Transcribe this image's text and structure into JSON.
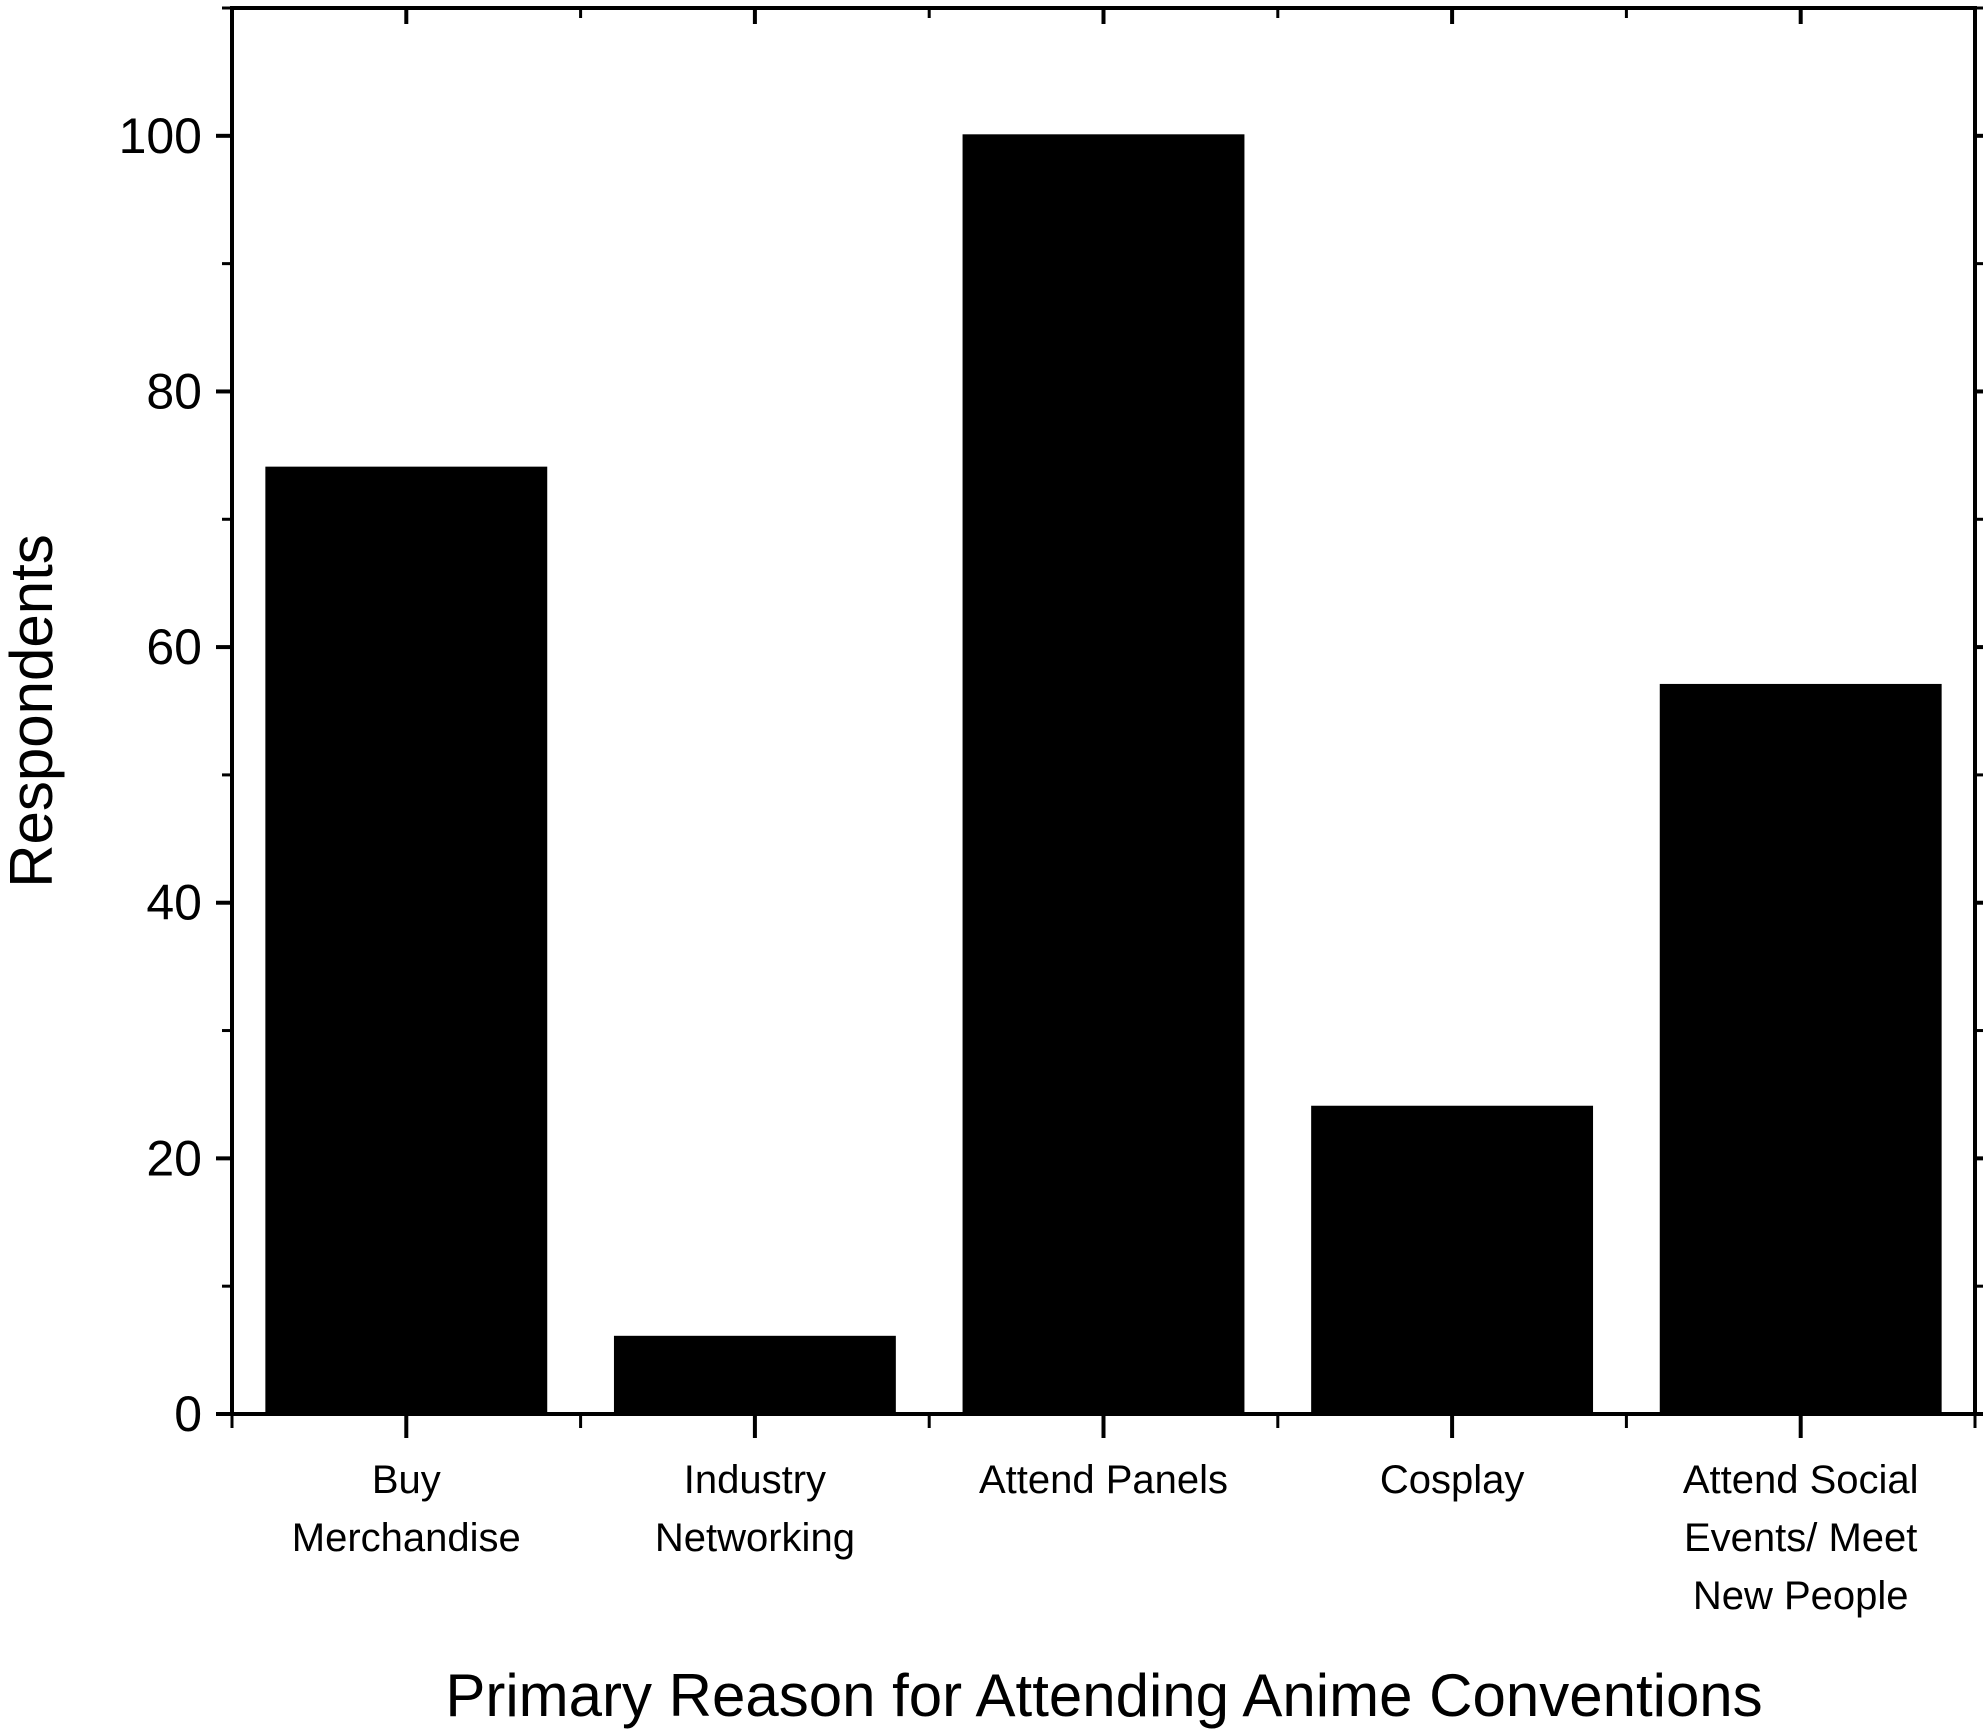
{
  "chart_data": {
    "type": "bar",
    "title": "",
    "xlabel": "Primary Reason for Attending Anime Conventions",
    "ylabel": "Respondents",
    "categories": [
      [
        "Buy",
        "Merchandise"
      ],
      [
        "Industry",
        "Networking"
      ],
      [
        "Attend Panels"
      ],
      [
        "Cosplay"
      ],
      [
        "Attend Social",
        "Events/ Meet",
        "New People"
      ]
    ],
    "values": [
      74,
      6,
      100,
      24,
      57
    ],
    "ylim": [
      0,
      110
    ],
    "yticks": [
      0,
      20,
      40,
      60,
      80,
      100
    ],
    "y_minor_step": 10,
    "grid": false,
    "legend": "none",
    "bar_color": "#000000",
    "axis_color": "#000000"
  }
}
